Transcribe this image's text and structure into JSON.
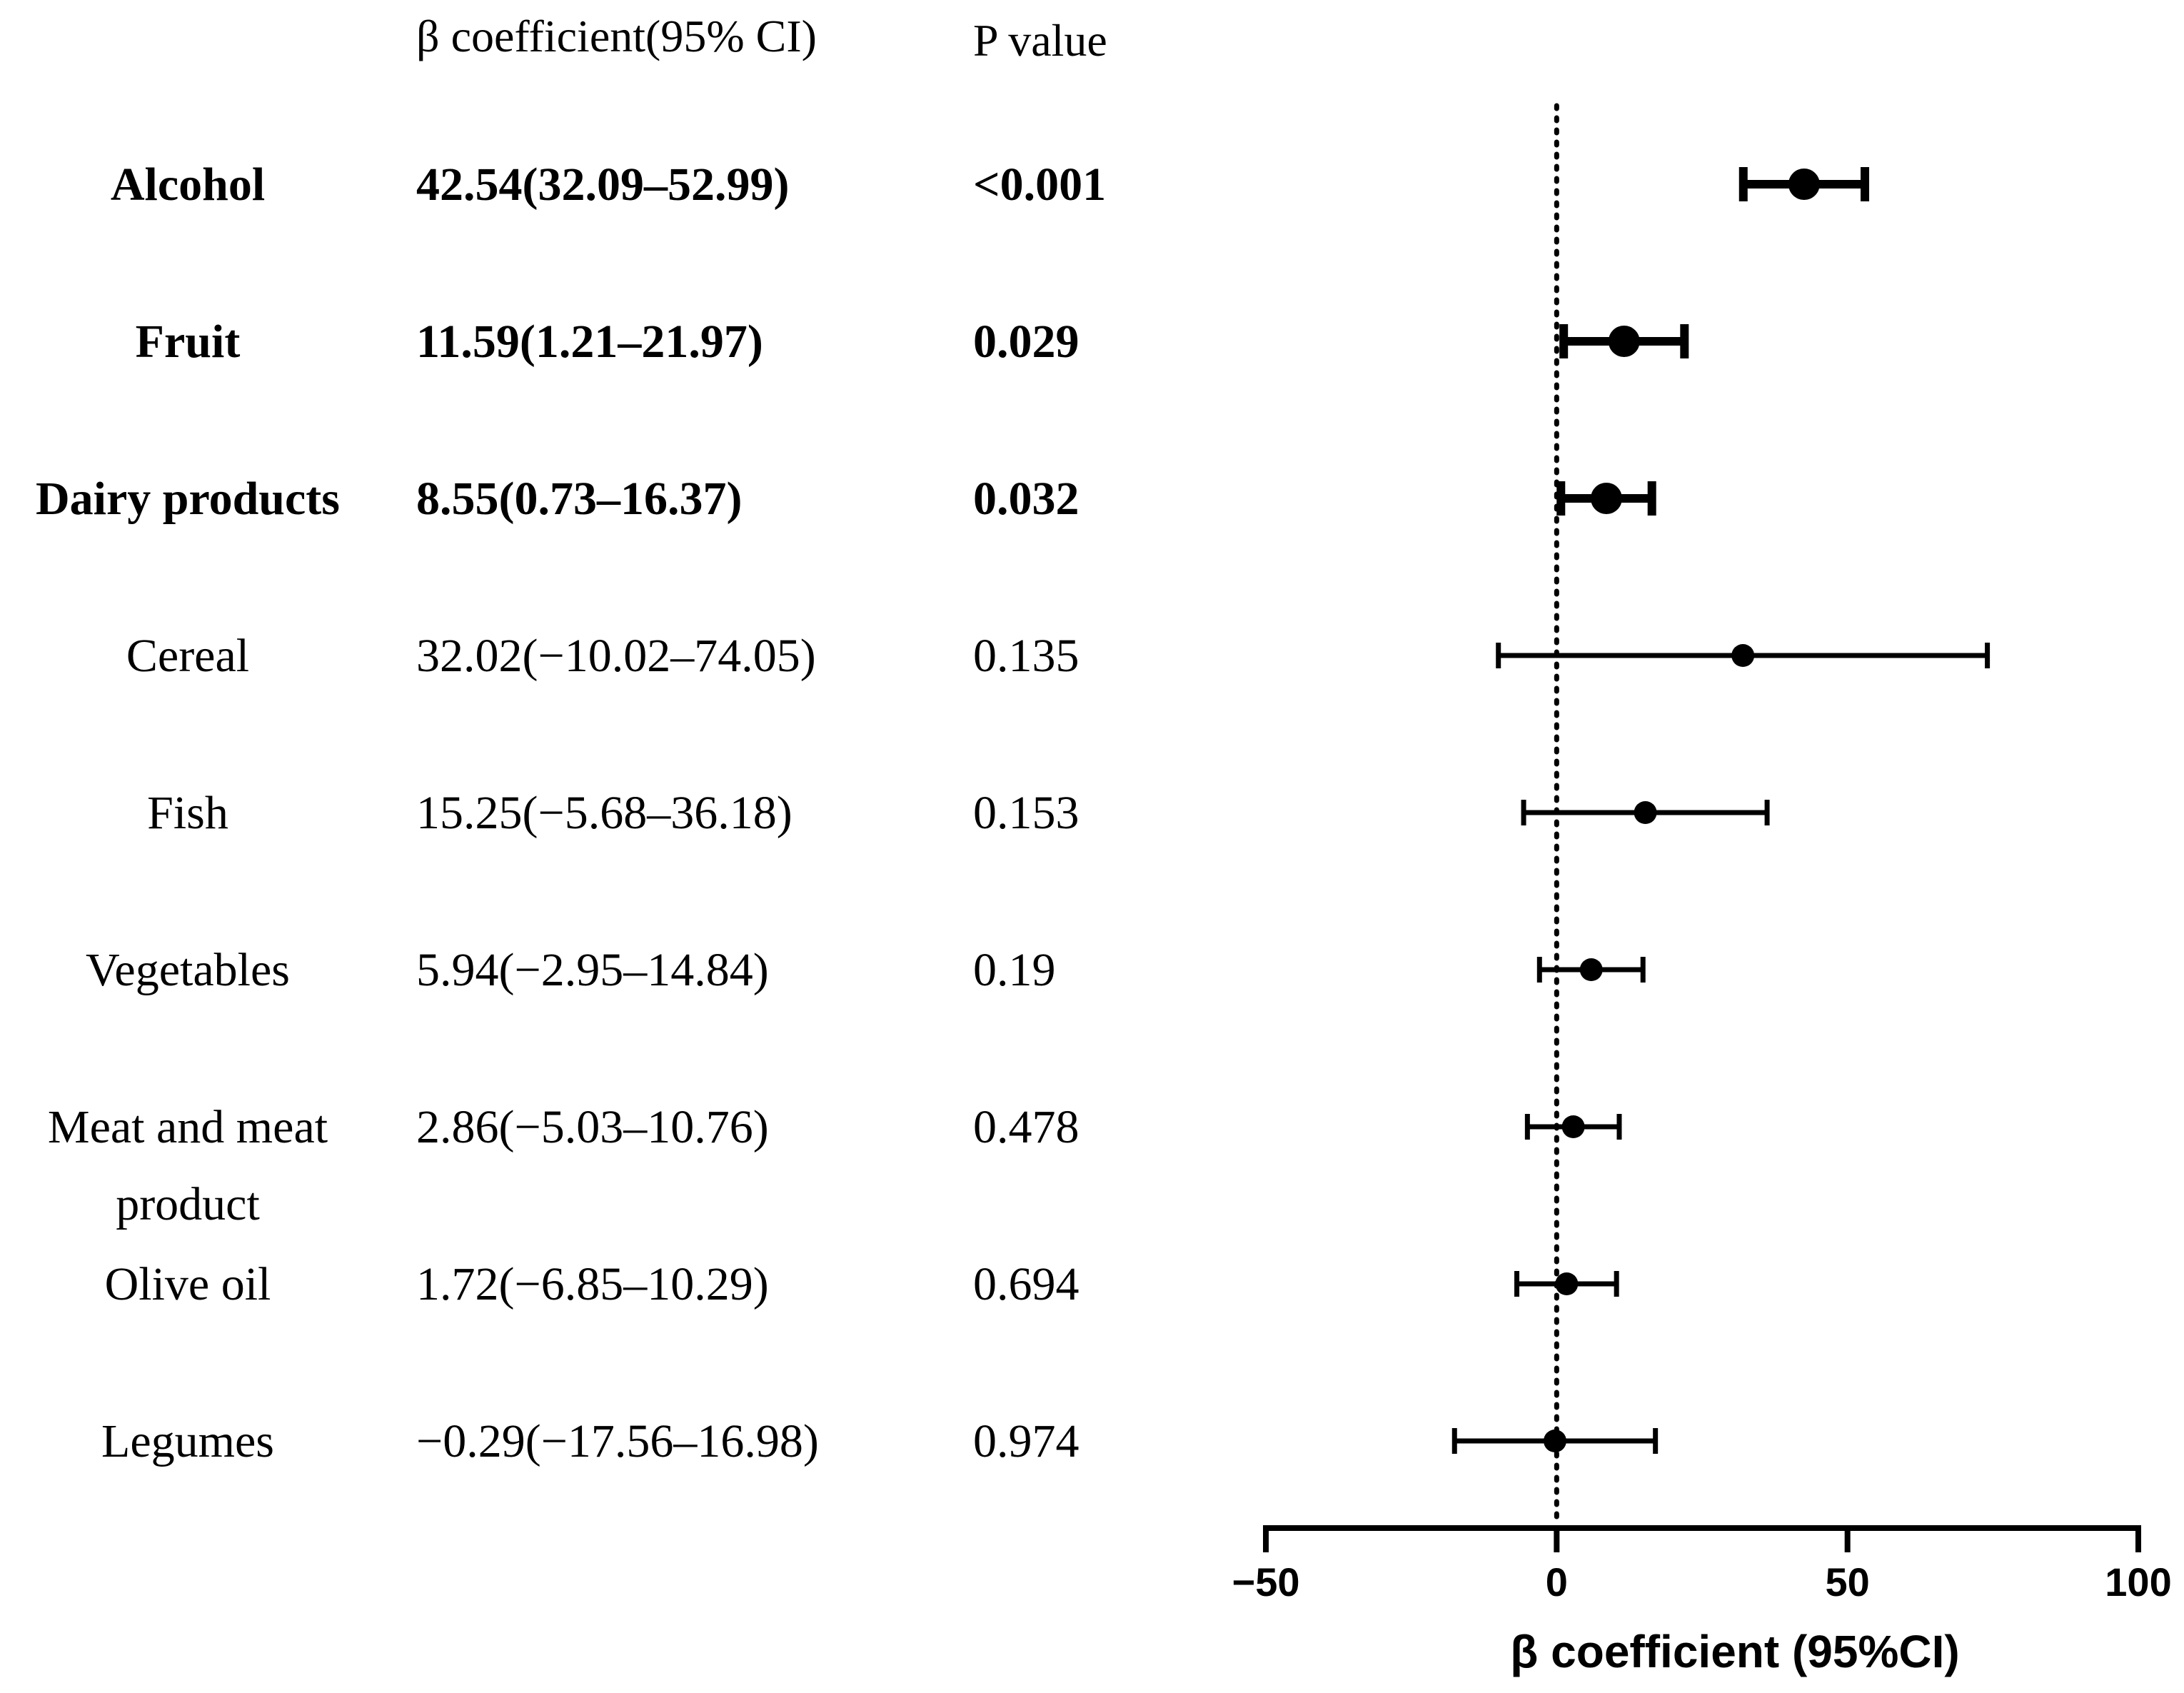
{
  "chart_data": {
    "type": "forest",
    "headers": {
      "estimate": "β coefficient(95% CI)",
      "p_value": "P value"
    },
    "rows": [
      {
        "label": "Alcohol",
        "estimate": 42.54,
        "ci_low": 32.09,
        "ci_high": 52.99,
        "estimate_text": "42.54(32.09–52.99)",
        "p_text": "<0.001",
        "significant": true
      },
      {
        "label": "Fruit",
        "estimate": 11.59,
        "ci_low": 1.21,
        "ci_high": 21.97,
        "estimate_text": "11.59(1.21–21.97)",
        "p_text": "0.029",
        "significant": true
      },
      {
        "label": "Dairy products",
        "estimate": 8.55,
        "ci_low": 0.73,
        "ci_high": 16.37,
        "estimate_text": "8.55(0.73–16.37)",
        "p_text": "0.032",
        "significant": true
      },
      {
        "label": "Cereal",
        "estimate": 32.02,
        "ci_low": -10.02,
        "ci_high": 74.05,
        "estimate_text": "32.02(−10.02–74.05)",
        "p_text": "0.135",
        "significant": false
      },
      {
        "label": "Fish",
        "estimate": 15.25,
        "ci_low": -5.68,
        "ci_high": 36.18,
        "estimate_text": "15.25(−5.68–36.18)",
        "p_text": "0.153",
        "significant": false
      },
      {
        "label": "Vegetables",
        "estimate": 5.94,
        "ci_low": -2.95,
        "ci_high": 14.84,
        "estimate_text": "5.94(−2.95–14.84)",
        "p_text": "0.19",
        "significant": false
      },
      {
        "label": "Meat and meat product",
        "label_lines": [
          "Meat and meat",
          "product"
        ],
        "estimate": 2.86,
        "ci_low": -5.03,
        "ci_high": 10.76,
        "estimate_text": "2.86(−5.03–10.76)",
        "p_text": "0.478",
        "significant": false
      },
      {
        "label": "Olive oil",
        "estimate": 1.72,
        "ci_low": -6.85,
        "ci_high": 10.29,
        "estimate_text": "1.72(−6.85–10.29)",
        "p_text": "0.694",
        "significant": false
      },
      {
        "label": "Legumes",
        "estimate": -0.29,
        "ci_low": -17.56,
        "ci_high": 16.98,
        "estimate_text": "−0.29(−17.56–16.98)",
        "p_text": "0.974",
        "significant": false
      }
    ],
    "x_axis": {
      "title": "β coefficient (95%CI)",
      "range": [
        -50,
        100
      ],
      "ticks": [
        -50,
        0,
        50,
        100
      ],
      "tick_labels": [
        "−50",
        "0",
        "50",
        "100"
      ]
    },
    "reference_line": 0
  }
}
